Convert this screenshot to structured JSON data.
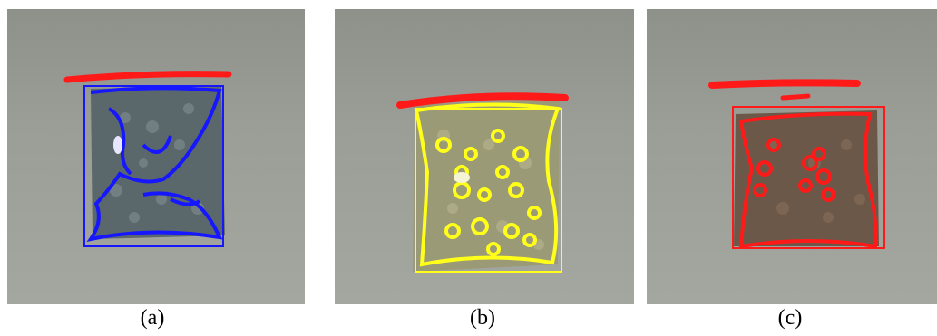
{
  "figure": {
    "panels": [
      {
        "label": "(a)",
        "outline_color": "#1616ff",
        "top_edge_color": "#ff1a1a",
        "bag_fill": "#5c6a6e",
        "granule_color": "#7f8d90"
      },
      {
        "label": "(b)",
        "outline_color": "#ffff1a",
        "top_edge_color": "#ff1a1a",
        "bag_fill": "#9a9a78",
        "granule_color": "#b8b690"
      },
      {
        "label": "(c)",
        "outline_color": "#ff1a1a",
        "top_edge_color": "#ff1a1a",
        "bag_fill": "#6f5a4c",
        "granule_color": "#8a6f5c"
      }
    ]
  }
}
